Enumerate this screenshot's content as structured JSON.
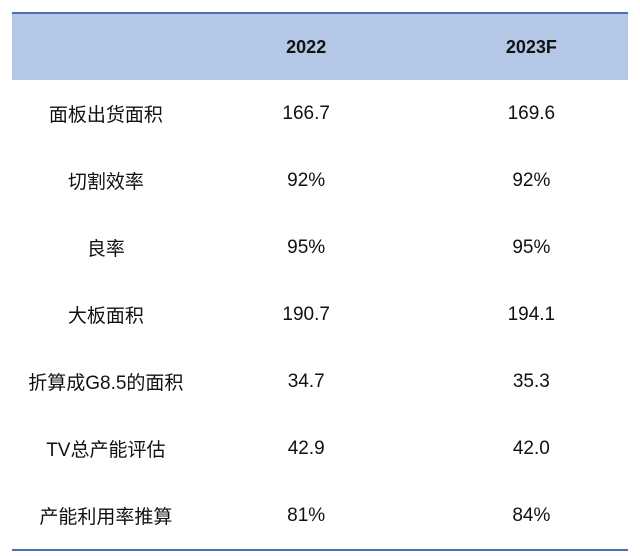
{
  "table": {
    "columns": [
      "2022",
      "2023F"
    ],
    "rows": [
      [
        "面板出货面积",
        "166.7",
        "169.6"
      ],
      [
        "切割效率",
        "92%",
        "92%"
      ],
      [
        "良率",
        "95%",
        "95%"
      ],
      [
        "大板面积",
        "190.7",
        "194.1"
      ],
      [
        "折算成G8.5的面积",
        "34.7",
        "35.3"
      ],
      [
        "TV总产能评估",
        "42.9",
        "42.0"
      ],
      [
        "产能利用率推算",
        "81%",
        "84%"
      ]
    ]
  }
}
